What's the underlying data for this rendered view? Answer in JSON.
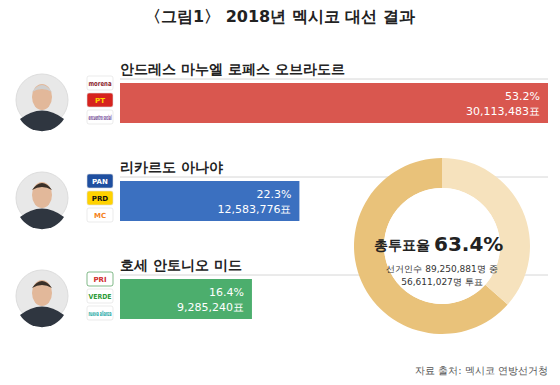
{
  "chart_data": [
    {
      "type": "bar",
      "title": "〈그림1〉 2018년 멕시코 대선 결과",
      "orientation": "horizontal",
      "categories": [
        "안드레스 마누엘 로페스 오브라도르",
        "리카르도 아나야",
        "호세 안토니오 미드"
      ],
      "values": [
        53.2,
        22.3,
        16.4
      ],
      "value_labels": [
        "53.2%",
        "22.3%",
        "16.4%"
      ],
      "vote_labels": [
        "30,113,483표",
        "12,583,776표",
        "9,285,240표"
      ],
      "parties": [
        [
          "morena",
          "PT",
          "encuentro social"
        ],
        [
          "PAN",
          "PRD",
          "MC"
        ],
        [
          "PRI",
          "VERDE",
          "nueva alianza"
        ]
      ],
      "colors": [
        "#d9574f",
        "#3b70c0",
        "#4cae6d"
      ],
      "xlim": [
        0,
        53.2
      ],
      "data_labels": true,
      "tick_labels": false,
      "source": "자료 출처: 멕시코 연방선거청"
    },
    {
      "type": "pie",
      "title": "총투표율",
      "values": [
        63.4,
        36.6
      ],
      "value_labels": [
        "63.4%",
        null
      ],
      "colors": [
        "#e9c27a",
        "#f6e2bd"
      ],
      "annotations": [
        "선거인수 89,250,881명 중",
        "56,611,027명 투표"
      ]
    }
  ]
}
